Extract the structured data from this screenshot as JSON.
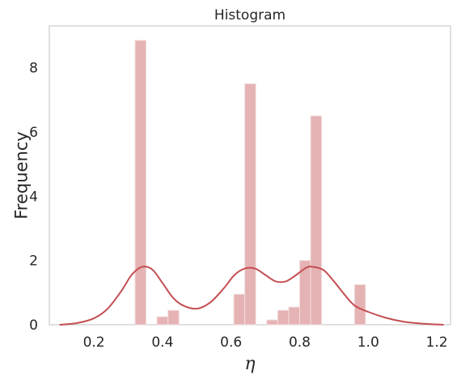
{
  "chart_data": {
    "type": "bar",
    "title": "Histogram",
    "xlabel": "η",
    "ylabel": "Frequency",
    "xlim": [
      0.07,
      1.24
    ],
    "ylim": [
      0,
      9.3
    ],
    "xticks": [
      "0.2",
      "0.4",
      "0.6",
      "0.8",
      "1.0",
      "1.2"
    ],
    "xtick_values": [
      0.2,
      0.4,
      0.6,
      0.8,
      1.0,
      1.2
    ],
    "yticks": [
      "0",
      "2",
      "4",
      "6",
      "8"
    ],
    "ytick_values": [
      0,
      2,
      4,
      6,
      8
    ],
    "grid": false,
    "bin_width": 0.032,
    "bins": [
      {
        "x0": 0.32,
        "x1": 0.352,
        "value": 8.85
      },
      {
        "x0": 0.384,
        "x1": 0.416,
        "value": 0.25
      },
      {
        "x0": 0.416,
        "x1": 0.448,
        "value": 0.45
      },
      {
        "x0": 0.608,
        "x1": 0.64,
        "value": 0.95
      },
      {
        "x0": 0.64,
        "x1": 0.672,
        "value": 7.5
      },
      {
        "x0": 0.704,
        "x1": 0.736,
        "value": 0.15
      },
      {
        "x0": 0.736,
        "x1": 0.768,
        "value": 0.45
      },
      {
        "x0": 0.768,
        "x1": 0.8,
        "value": 0.55
      },
      {
        "x0": 0.8,
        "x1": 0.832,
        "value": 2.0
      },
      {
        "x0": 0.832,
        "x1": 0.864,
        "value": 6.5
      },
      {
        "x0": 0.96,
        "x1": 0.992,
        "value": 1.25
      }
    ],
    "kde": {
      "x": [
        0.1,
        0.15,
        0.2,
        0.24,
        0.28,
        0.31,
        0.34,
        0.37,
        0.4,
        0.43,
        0.46,
        0.5,
        0.54,
        0.58,
        0.61,
        0.64,
        0.67,
        0.7,
        0.73,
        0.76,
        0.79,
        0.82,
        0.84,
        0.87,
        0.9,
        0.93,
        0.96,
        1.0,
        1.05,
        1.1,
        1.15,
        1.2,
        1.22
      ],
      "y": [
        0.0,
        0.05,
        0.2,
        0.5,
        1.05,
        1.55,
        1.8,
        1.72,
        1.3,
        0.85,
        0.6,
        0.5,
        0.7,
        1.15,
        1.55,
        1.75,
        1.75,
        1.55,
        1.35,
        1.35,
        1.55,
        1.78,
        1.8,
        1.7,
        1.35,
        0.95,
        0.6,
        0.4,
        0.22,
        0.1,
        0.04,
        0.01,
        0.0
      ]
    },
    "colors": {
      "bar_fill": "#e5b3b4",
      "bar_edge": "#f3dede",
      "kde_line": "#c44e52",
      "frame": "#cccccc",
      "text": "#262626"
    }
  }
}
